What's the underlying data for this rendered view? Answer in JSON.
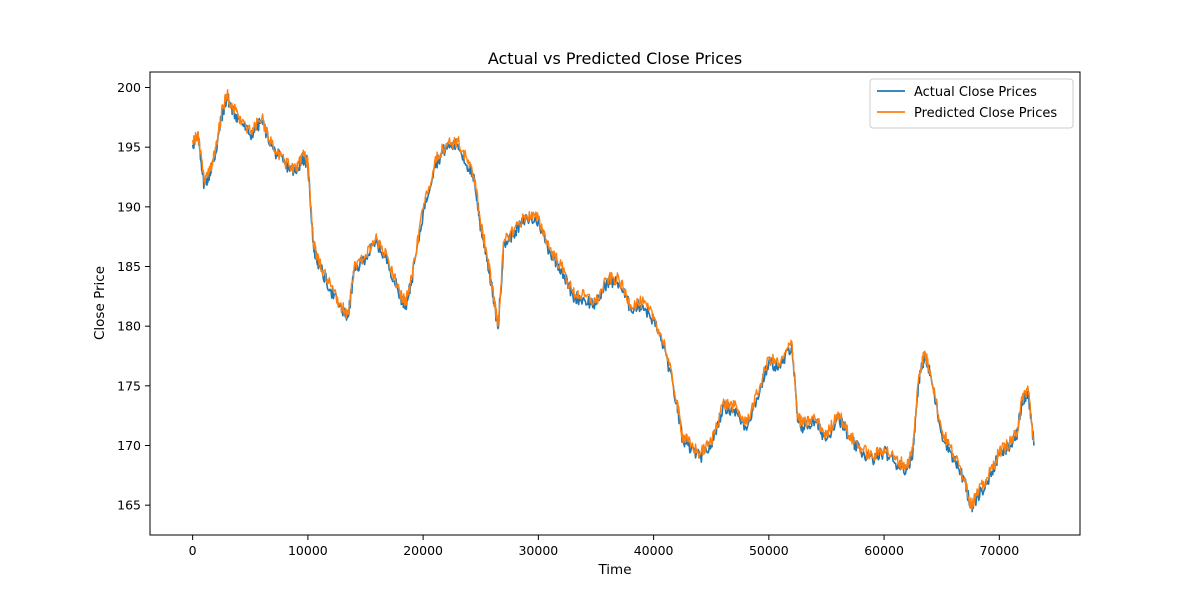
{
  "chart_data": {
    "type": "line",
    "title": "Actual vs Predicted Close Prices",
    "xlabel": "Time",
    "ylabel": "Close Price",
    "xlim": [
      -3700,
      77000
    ],
    "ylim": [
      162.5,
      201.3
    ],
    "xticks": [
      0,
      10000,
      20000,
      30000,
      40000,
      50000,
      60000,
      70000
    ],
    "yticks": [
      165,
      170,
      175,
      180,
      185,
      190,
      195,
      200
    ],
    "grid": false,
    "legend_position": "top-right",
    "series": [
      {
        "name": "Actual Close Prices",
        "color": "#1f77b4",
        "x": [
          0,
          500,
          1000,
          1500,
          2000,
          2500,
          3000,
          3500,
          4000,
          5000,
          6000,
          7000,
          8000,
          9000,
          9500,
          10000,
          10500,
          11000,
          12000,
          13000,
          13500,
          14000,
          15000,
          16000,
          17000,
          18000,
          18500,
          19000,
          20000,
          21000,
          22000,
          23000,
          24000,
          24500,
          25000,
          25500,
          26000,
          26500,
          27000,
          28000,
          29000,
          30000,
          31000,
          32000,
          33000,
          34000,
          35000,
          36000,
          37000,
          38000,
          39000,
          40000,
          41000,
          42000,
          42500,
          43000,
          44000,
          45000,
          46000,
          47000,
          48000,
          49000,
          50000,
          51000,
          52000,
          52500,
          53000,
          54000,
          55000,
          56000,
          57000,
          58000,
          59000,
          60000,
          61000,
          62000,
          62500,
          63000,
          63500,
          64000,
          65000,
          66000,
          67000,
          67500,
          68000,
          69000,
          70000,
          71000,
          71500,
          72000,
          72500,
          73000
        ],
        "y": [
          195.2,
          195.8,
          191.8,
          192.8,
          194.5,
          197.5,
          199.2,
          198.0,
          197.4,
          196.0,
          197.2,
          194.8,
          193.6,
          192.8,
          194.2,
          193.6,
          186.5,
          185.0,
          183.0,
          181.2,
          180.8,
          184.5,
          185.8,
          187.0,
          185.2,
          182.5,
          181.8,
          183.8,
          189.5,
          193.5,
          195.0,
          195.2,
          193.2,
          192.0,
          188.2,
          186.0,
          183.0,
          179.8,
          186.8,
          188.0,
          189.0,
          188.8,
          186.2,
          184.8,
          182.5,
          182.2,
          181.8,
          183.8,
          183.6,
          181.5,
          181.8,
          180.5,
          178.0,
          173.5,
          170.5,
          170.0,
          169.0,
          170.0,
          173.2,
          173.0,
          171.5,
          174.0,
          177.0,
          176.5,
          178.5,
          172.0,
          171.5,
          172.0,
          170.5,
          172.5,
          170.5,
          169.5,
          168.8,
          169.5,
          168.5,
          168.0,
          169.5,
          175.5,
          177.5,
          176.0,
          171.0,
          169.0,
          167.0,
          164.8,
          165.5,
          167.0,
          169.2,
          170.0,
          170.8,
          173.8,
          174.5,
          170.0
        ]
      },
      {
        "name": "Predicted Close Prices",
        "color": "#ff7f0e",
        "x": [
          0,
          500,
          1000,
          1500,
          2000,
          2500,
          3000,
          3500,
          4000,
          5000,
          6000,
          7000,
          8000,
          9000,
          9500,
          10000,
          10500,
          11000,
          12000,
          13000,
          13500,
          14000,
          15000,
          16000,
          17000,
          18000,
          18500,
          19000,
          20000,
          21000,
          22000,
          23000,
          24000,
          24500,
          25000,
          25500,
          26000,
          26500,
          27000,
          28000,
          29000,
          30000,
          31000,
          32000,
          33000,
          34000,
          35000,
          36000,
          37000,
          38000,
          39000,
          40000,
          41000,
          42000,
          42500,
          43000,
          44000,
          45000,
          46000,
          47000,
          48000,
          49000,
          50000,
          51000,
          52000,
          52500,
          53000,
          54000,
          55000,
          56000,
          57000,
          58000,
          59000,
          60000,
          61000,
          62000,
          62500,
          63000,
          63500,
          64000,
          65000,
          66000,
          67000,
          67500,
          68000,
          69000,
          70000,
          71000,
          71500,
          72000,
          72500,
          73000
        ],
        "y": [
          195.6,
          195.9,
          192.1,
          193.0,
          194.8,
          197.8,
          199.5,
          198.3,
          197.6,
          196.2,
          197.4,
          195.0,
          193.8,
          193.0,
          194.4,
          193.8,
          186.8,
          185.3,
          183.3,
          181.5,
          181.0,
          184.8,
          186.0,
          187.3,
          185.5,
          182.8,
          182.0,
          184.0,
          189.8,
          193.8,
          195.3,
          195.5,
          193.5,
          192.3,
          188.5,
          186.3,
          183.3,
          180.0,
          187.0,
          188.3,
          189.3,
          189.0,
          186.5,
          185.0,
          182.8,
          182.5,
          182.0,
          184.0,
          183.9,
          181.8,
          182.0,
          180.8,
          178.3,
          173.8,
          170.8,
          170.3,
          169.3,
          170.3,
          173.5,
          173.3,
          171.8,
          174.3,
          177.3,
          176.8,
          178.7,
          172.3,
          171.8,
          172.3,
          170.8,
          172.8,
          170.8,
          169.8,
          169.0,
          169.8,
          168.8,
          168.3,
          169.8,
          175.8,
          177.8,
          176.3,
          171.3,
          169.3,
          167.3,
          165.0,
          165.8,
          167.3,
          169.5,
          170.3,
          171.0,
          174.0,
          174.8,
          170.3
        ]
      }
    ]
  }
}
